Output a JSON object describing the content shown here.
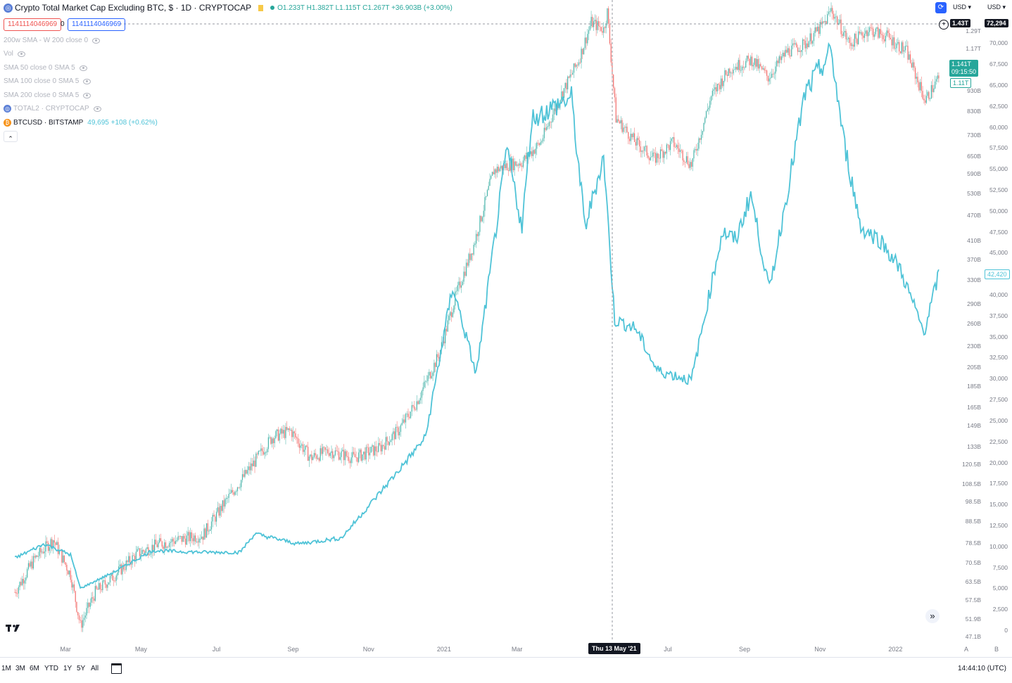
{
  "header": {
    "title": "Crypto Total Market Cap Excluding BTC, $ · 1D · CRYPTOCAP",
    "ohlc": "O1.233T H1.382T L1.115T C1.267T +36.903B (+3.00%)",
    "input_left": "1141114046969",
    "input_mid": "0",
    "input_right": "1141114046969",
    "currency_left": "USD",
    "currency_right": "USD"
  },
  "legend": [
    {
      "label": "200w SMA - W 200 close 0"
    },
    {
      "label": "Vol"
    },
    {
      "label": "SMA 50 close 0 SMA 5"
    },
    {
      "label": "SMA 100 close 0 SMA 5"
    },
    {
      "label": "SMA 200 close 0 SMA 5"
    },
    {
      "label": "TOTAL2 · CRYPTOCAP"
    },
    {
      "label": "BTCUSD · BITSTAMP",
      "value": "49,695 +108 (+0.62%)"
    }
  ],
  "price_badges": {
    "crosshair_left": "1.43T",
    "crosshair_right": "72,294",
    "current_total2": "1.141T",
    "current_total2_time": "09:15:50",
    "total2_ghost": "1.11T",
    "btc_price": "42,420",
    "crosshair_date": "Thu 13 May '21"
  },
  "bottom": {
    "ranges": [
      "1M",
      "3M",
      "6M",
      "YTD",
      "1Y",
      "5Y",
      "All"
    ],
    "clock": "14:44:10 (UTC)",
    "axis_buttons": [
      "A",
      "B"
    ]
  },
  "colors": {
    "up": "#26a69a",
    "down": "#ef5350",
    "btc_line": "#4fc3d7",
    "crosshair": "#9598a1",
    "badge_dark": "#131722",
    "badge_teal": "#26a69a"
  },
  "icons": [
    "total2-coin-icon",
    "btc-coin-icon",
    "eye-icon",
    "tradingview-logo-icon",
    "chevron-up-icon",
    "double-chevron-right-icon",
    "calendar-range-icon",
    "compare-icon"
  ],
  "chart_data": {
    "type": "line",
    "title": "Crypto Total Market Cap Excluding BTC, $ · 1D · CRYPTOCAP",
    "x_tick_labels": [
      "Mar",
      "May",
      "Jul",
      "Sep",
      "Nov",
      "2021",
      "Mar",
      "Jul",
      "Sep",
      "Nov",
      "2022"
    ],
    "left_axis_ticks": [
      "1.29T",
      "1.17T",
      "930B",
      "830B",
      "730B",
      "650B",
      "590B",
      "530B",
      "470B",
      "410B",
      "370B",
      "330B",
      "290B",
      "260B",
      "230B",
      "205B",
      "185B",
      "165B",
      "149B",
      "133B",
      "120.5B",
      "108.5B",
      "98.5B",
      "88.5B",
      "78.5B",
      "70.5B",
      "63.5B",
      "57.5B",
      "51.9B",
      "47.1B"
    ],
    "right_axis_ticks": [
      "70,000",
      "67,500",
      "65,000",
      "62,500",
      "60,000",
      "57,500",
      "55,000",
      "52,500",
      "50,000",
      "47,500",
      "45,000",
      "42,500",
      "40,000",
      "37,500",
      "35,000",
      "32,500",
      "30,000",
      "27,500",
      "25,000",
      "22,500",
      "20,000",
      "17,500",
      "15,000",
      "12,500",
      "10,000",
      "7,500",
      "5,000",
      "2,500",
      "0"
    ],
    "y_left_scale": "log",
    "y_right_range": [
      0,
      72294
    ],
    "series": [
      {
        "name": "TOTAL2 · CRYPTOCAP",
        "style": "candles",
        "x": [
          "2020-01-20",
          "2020-02-05",
          "2020-02-20",
          "2020-03-05",
          "2020-03-13",
          "2020-03-25",
          "2020-04-10",
          "2020-04-28",
          "2020-05-15",
          "2020-06-01",
          "2020-06-20",
          "2020-07-10",
          "2020-07-28",
          "2020-08-15",
          "2020-08-30",
          "2020-09-15",
          "2020-09-30",
          "2020-10-20",
          "2020-11-10",
          "2020-11-25",
          "2020-12-10",
          "2020-12-28",
          "2021-01-10",
          "2021-01-25",
          "2021-02-10",
          "2021-02-22",
          "2021-03-05",
          "2021-03-20",
          "2021-04-05",
          "2021-04-20",
          "2021-04-30",
          "2021-05-10",
          "2021-05-13",
          "2021-05-20",
          "2021-06-05",
          "2021-06-20",
          "2021-07-05",
          "2021-07-20",
          "2021-08-05",
          "2021-08-20",
          "2021-09-07",
          "2021-09-20",
          "2021-10-05",
          "2021-10-20",
          "2021-11-05",
          "2021-11-10",
          "2021-11-25",
          "2021-12-10",
          "2021-12-25",
          "2022-01-10",
          "2022-01-25",
          "2022-02-05"
        ],
        "y": [
          60,
          72,
          80,
          66,
          50,
          60,
          66,
          74,
          78,
          80,
          82,
          100,
          118,
          140,
          145,
          125,
          130,
          125,
          132,
          145,
          170,
          220,
          300,
          400,
          600,
          620,
          630,
          700,
          900,
          1100,
          1350,
          1300,
          1430,
          800,
          700,
          640,
          700,
          620,
          900,
          1050,
          1100,
          1000,
          1150,
          1200,
          1350,
          1450,
          1200,
          1300,
          1250,
          1150,
          880,
          1000
        ]
      },
      {
        "name": "BTCUSD · BITSTAMP",
        "style": "line",
        "x": [
          "2020-01-20",
          "2020-02-13",
          "2020-03-05",
          "2020-03-13",
          "2020-04-10",
          "2020-05-10",
          "2020-06-20",
          "2020-07-20",
          "2020-08-01",
          "2020-09-05",
          "2020-10-10",
          "2020-11-05",
          "2020-11-25",
          "2020-12-17",
          "2021-01-08",
          "2021-01-27",
          "2021-02-21",
          "2021-03-05",
          "2021-03-13",
          "2021-04-14",
          "2021-04-25",
          "2021-05-10",
          "2021-05-13",
          "2021-05-19",
          "2021-06-05",
          "2021-06-22",
          "2021-07-20",
          "2021-08-14",
          "2021-08-25",
          "2021-09-06",
          "2021-09-21",
          "2021-10-20",
          "2021-11-10",
          "2021-11-20",
          "2021-12-04",
          "2021-12-20",
          "2022-01-05",
          "2022-01-24",
          "2022-02-05"
        ],
        "y": [
          8600,
          10300,
          9000,
          5000,
          7000,
          9500,
          9300,
          9300,
          11500,
          10300,
          11000,
          15500,
          19000,
          23000,
          41000,
          30500,
          57500,
          48000,
          61000,
          63500,
          48000,
          56500,
          50000,
          37000,
          36000,
          31000,
          29800,
          47500,
          46500,
          52000,
          40500,
          64000,
          69000,
          58500,
          48000,
          46500,
          43000,
          35500,
          42420
        ]
      }
    ],
    "crosshair": {
      "date": "Thu 13 May '21",
      "total2_value": "1.43T",
      "btc_value": "72,294"
    },
    "grid": false,
    "legend_position": "top-left"
  }
}
